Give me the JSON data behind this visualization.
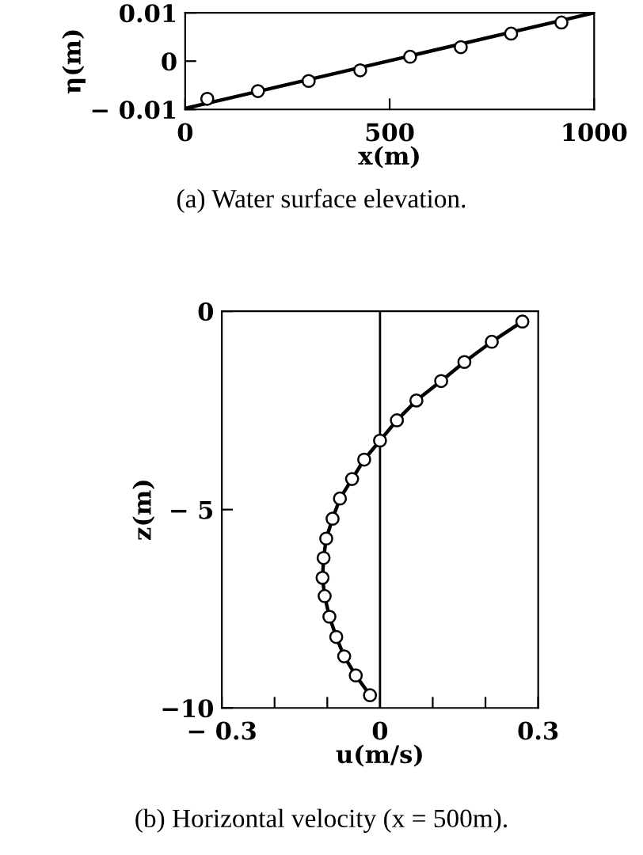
{
  "chart_data": [
    {
      "type": "line",
      "xlabel": "x(m)",
      "ylabel": "η(m)",
      "annotations": [
        "(a) Water surface elevation."
      ],
      "xlim": [
        0,
        1000
      ],
      "ylim": [
        -0.01,
        0.01
      ],
      "xticks": [
        0,
        500,
        1000
      ],
      "yticks": [
        {
          "value": -0.01,
          "label": "− 0.01"
        },
        0,
        0.01
      ],
      "grid": false,
      "legend": false,
      "series": [
        {
          "color": "#000000",
          "marker": "none",
          "line_style": "solid",
          "x": [
            0,
            1000
          ],
          "values": [
            -0.0098,
            0.01
          ]
        },
        {
          "type": "scatter",
          "color": "#000000",
          "marker": "circle",
          "x": [
            54,
            178,
            302,
            428,
            550,
            674,
            797,
            920
          ],
          "values": [
            -0.0078,
            -0.0062,
            -0.0041,
            -0.0019,
            0.0009,
            0.0029,
            0.0057,
            0.008
          ]
        }
      ]
    },
    {
      "type": "line",
      "xlabel": "u(m/s)",
      "ylabel": "z(m)",
      "annotations": [
        "(b) Horizontal velocity (x = 500m)."
      ],
      "xlim": [
        -0.3,
        0.3
      ],
      "ylim": [
        -10,
        0
      ],
      "xticks": [
        {
          "value": -0.3,
          "label": "− 0.3"
        },
        {
          "value": -0.2,
          "label": null
        },
        {
          "value": -0.1,
          "label": null
        },
        0,
        {
          "value": 0.1,
          "label": null
        },
        {
          "value": 0.2,
          "label": null
        },
        0.3
      ],
      "yticks": [
        {
          "value": -10,
          "label": "−10"
        },
        {
          "value": -5,
          "label": "− 5"
        },
        0
      ],
      "grid": false,
      "legend": false,
      "ref_lines": [
        {
          "axis": "x",
          "value": 0,
          "color": "#000000",
          "line_style": "solid"
        }
      ],
      "series": [
        {
          "color": "#000000",
          "marker": "none",
          "line_style": "solid",
          "x": [
            0.27,
            0.212,
            0.16,
            0.116,
            0.069,
            0.032,
            0.0,
            -0.03,
            -0.053,
            -0.076,
            -0.09,
            -0.102,
            -0.107,
            -0.109,
            -0.105,
            -0.096,
            -0.083,
            -0.068,
            -0.046,
            -0.019
          ],
          "values": [
            -0.26,
            -0.77,
            -1.28,
            -1.76,
            -2.25,
            -2.75,
            -3.26,
            -3.74,
            -4.23,
            -4.72,
            -5.23,
            -5.73,
            -6.22,
            -6.72,
            -7.18,
            -7.7,
            -8.21,
            -8.7,
            -9.18,
            -9.68
          ]
        },
        {
          "type": "scatter",
          "color": "#000000",
          "marker": "circle",
          "x": [
            0.27,
            0.212,
            0.16,
            0.116,
            0.069,
            0.032,
            0.0,
            -0.03,
            -0.053,
            -0.076,
            -0.09,
            -0.102,
            -0.107,
            -0.109,
            -0.105,
            -0.096,
            -0.083,
            -0.068,
            -0.046,
            -0.019
          ],
          "values": [
            -0.26,
            -0.77,
            -1.28,
            -1.76,
            -2.25,
            -2.75,
            -3.26,
            -3.74,
            -4.23,
            -4.72,
            -5.23,
            -5.73,
            -6.22,
            -6.72,
            -7.18,
            -7.7,
            -8.21,
            -8.7,
            -9.18,
            -9.68
          ]
        }
      ]
    }
  ]
}
